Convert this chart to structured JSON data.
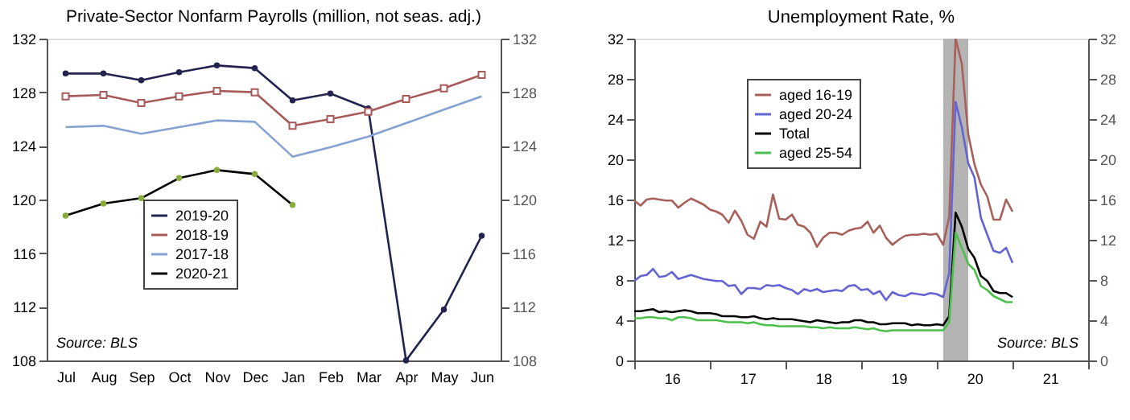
{
  "chart_data": [
    {
      "type": "line",
      "title": "Private-Sector Nonfarm Payrolls",
      "subtitle": "(million, not seas. adj.)",
      "categories": [
        "Jul",
        "Aug",
        "Sep",
        "Oct",
        "Nov",
        "Dec",
        "Jan",
        "Feb",
        "Mar",
        "Apr",
        "May",
        "Jun"
      ],
      "series": [
        {
          "name": "2019-20",
          "color": "#23234f",
          "marker": "circle",
          "values": [
            129.4,
            129.4,
            128.9,
            129.5,
            130.0,
            129.8,
            127.4,
            127.9,
            126.8,
            108.0,
            111.8,
            117.3
          ]
        },
        {
          "name": "2018-19",
          "color": "#a85a5a",
          "marker": "square",
          "values": [
            127.7,
            127.8,
            127.2,
            127.7,
            128.1,
            128.0,
            125.5,
            126.0,
            126.55,
            127.5,
            128.3,
            129.3
          ]
        },
        {
          "name": "2017-18",
          "color": "#86a2d2",
          "marker": "none",
          "values": [
            125.4,
            125.5,
            124.9,
            125.4,
            125.9,
            125.8,
            123.2,
            123.9,
            124.7,
            125.7,
            126.7,
            127.7
          ]
        },
        {
          "name": "2020-21",
          "color": "#000000",
          "marker": "circle",
          "colors": [
            "#8aaa3a",
            "#8aaa3a",
            "#8aaa3a",
            "#8aaa3a",
            "#8aaa3a",
            "#8aaa3a",
            "#8aaa3a",
            null,
            null,
            null,
            null,
            null
          ],
          "values": [
            118.8,
            119.7,
            120.1,
            121.6,
            122.2,
            121.9,
            119.6,
            null,
            null,
            null,
            null,
            null
          ]
        }
      ],
      "ylim": [
        108,
        132
      ],
      "yticks": [
        108,
        112,
        116,
        120,
        124,
        128,
        132
      ],
      "y2lim": [
        108,
        132
      ],
      "y2ticks": [
        108,
        112,
        116,
        120,
        124,
        128,
        132
      ],
      "grid": false,
      "legend": "left",
      "annotations": [
        "Source: BLS"
      ]
    },
    {
      "type": "line",
      "title": "Unemployment Rate, %",
      "x": [
        "2016-01",
        "2016-02",
        "2016-03",
        "2016-04",
        "2016-05",
        "2016-06",
        "2016-07",
        "2016-08",
        "2016-09",
        "2016-10",
        "2016-11",
        "2016-12",
        "2017-01",
        "2017-02",
        "2017-03",
        "2017-04",
        "2017-05",
        "2017-06",
        "2017-07",
        "2017-08",
        "2017-09",
        "2017-10",
        "2017-11",
        "2017-12",
        "2018-01",
        "2018-02",
        "2018-03",
        "2018-04",
        "2018-05",
        "2018-06",
        "2018-07",
        "2018-08",
        "2018-09",
        "2018-10",
        "2018-11",
        "2018-12",
        "2019-01",
        "2019-02",
        "2019-03",
        "2019-04",
        "2019-05",
        "2019-06",
        "2019-07",
        "2019-08",
        "2019-09",
        "2019-10",
        "2019-11",
        "2019-12",
        "2020-01",
        "2020-02",
        "2020-03",
        "2020-04",
        "2020-05",
        "2020-06",
        "2020-07",
        "2020-08",
        "2020-09",
        "2020-10",
        "2020-11",
        "2020-12",
        "2021-01"
      ],
      "series": [
        {
          "name": "aged 16-19",
          "color": "#a8605a",
          "values": [
            15.9,
            15.4,
            16.0,
            16.1,
            16.0,
            15.9,
            15.9,
            15.2,
            15.7,
            16.1,
            15.8,
            15.5,
            15.0,
            14.8,
            14.5,
            13.7,
            14.9,
            13.9,
            12.5,
            12.1,
            13.8,
            13.3,
            16.5,
            14.1,
            14.0,
            14.5,
            13.5,
            13.3,
            12.7,
            11.3,
            12.2,
            12.7,
            12.7,
            12.5,
            12.9,
            13.1,
            13.2,
            13.8,
            12.7,
            13.4,
            12.2,
            11.5,
            12.0,
            12.4,
            12.5,
            12.5,
            12.6,
            12.5,
            12.6,
            11.5,
            14.3,
            32.0,
            29.5,
            22.5,
            19.5,
            17.5,
            16.3,
            14.0,
            14.0,
            16.0,
            14.8
          ]
        },
        {
          "name": "aged 20-24",
          "color": "#6464d2",
          "values": [
            7.9,
            8.4,
            8.5,
            9.1,
            8.3,
            8.4,
            8.8,
            8.1,
            8.3,
            8.5,
            8.3,
            8.1,
            8.0,
            7.9,
            7.9,
            7.4,
            7.5,
            6.6,
            7.2,
            7.2,
            7.1,
            7.5,
            7.4,
            7.5,
            7.2,
            7.0,
            6.6,
            7.1,
            6.9,
            7.1,
            6.8,
            6.9,
            7.0,
            6.9,
            7.4,
            7.5,
            7.0,
            7.1,
            6.6,
            6.9,
            6.0,
            6.8,
            6.5,
            6.4,
            6.7,
            6.6,
            6.5,
            6.7,
            6.6,
            6.3,
            8.7,
            25.7,
            23.2,
            19.6,
            18.2,
            14.2,
            12.5,
            10.9,
            10.7,
            11.2,
            9.7
          ]
        },
        {
          "name": "Total",
          "color": "#000000",
          "values": [
            4.9,
            4.9,
            5.0,
            5.1,
            4.8,
            4.9,
            4.8,
            4.9,
            5.0,
            4.9,
            4.7,
            4.7,
            4.7,
            4.6,
            4.4,
            4.4,
            4.4,
            4.3,
            4.3,
            4.4,
            4.2,
            4.1,
            4.2,
            4.1,
            4.1,
            4.1,
            4.0,
            3.9,
            3.8,
            4.0,
            3.9,
            3.8,
            3.7,
            3.8,
            3.8,
            4.0,
            4.0,
            3.8,
            3.8,
            3.6,
            3.6,
            3.7,
            3.7,
            3.7,
            3.5,
            3.6,
            3.5,
            3.5,
            3.6,
            3.5,
            4.4,
            14.7,
            13.3,
            11.1,
            10.2,
            8.4,
            7.9,
            6.9,
            6.7,
            6.7,
            6.3
          ]
        },
        {
          "name": "aged 25-54",
          "color": "#4cc04c",
          "values": [
            4.2,
            4.2,
            4.3,
            4.3,
            4.2,
            4.2,
            4.0,
            4.3,
            4.3,
            4.2,
            4.0,
            4.0,
            4.0,
            4.0,
            3.9,
            3.8,
            3.8,
            3.8,
            3.7,
            3.8,
            3.6,
            3.5,
            3.5,
            3.4,
            3.4,
            3.4,
            3.4,
            3.4,
            3.3,
            3.3,
            3.2,
            3.3,
            3.2,
            3.2,
            3.2,
            3.3,
            3.2,
            3.1,
            3.2,
            3.0,
            2.9,
            3.0,
            3.0,
            3.0,
            3.0,
            3.0,
            3.0,
            3.0,
            3.0,
            3.0,
            3.8,
            12.7,
            11.2,
            9.6,
            9.0,
            7.4,
            7.0,
            6.4,
            6.1,
            5.8,
            5.8
          ]
        }
      ],
      "xlim": [
        "2016-01",
        "2022-01"
      ],
      "xticks": [
        {
          "value": "2016-01",
          "label": null
        },
        {
          "value": "2016-07",
          "label": "16"
        },
        {
          "value": "2017-01",
          "label": null
        },
        {
          "value": "2017-07",
          "label": "17"
        },
        {
          "value": "2018-01",
          "label": null
        },
        {
          "value": "2018-07",
          "label": "18"
        },
        {
          "value": "2019-01",
          "label": null
        },
        {
          "value": "2019-07",
          "label": "19"
        },
        {
          "value": "2020-01",
          "label": null
        },
        {
          "value": "2020-07",
          "label": "20"
        },
        {
          "value": "2021-01",
          "label": null
        },
        {
          "value": "2021-07",
          "label": "21"
        },
        {
          "value": "2022-01",
          "label": null
        }
      ],
      "ylim": [
        0,
        32
      ],
      "yticks": [
        0,
        4,
        8,
        12,
        16,
        20,
        24,
        28,
        32
      ],
      "y2lim": [
        0,
        32
      ],
      "y2ticks": [
        0,
        4,
        8,
        12,
        16,
        20,
        24,
        28,
        32
      ],
      "bands": [
        {
          "axis": "x",
          "from": "2020-02",
          "to": "2020-06",
          "color": "#b4b4b4"
        }
      ],
      "grid": false,
      "legend": "top left",
      "annotations": [
        "Source: BLS"
      ]
    }
  ]
}
